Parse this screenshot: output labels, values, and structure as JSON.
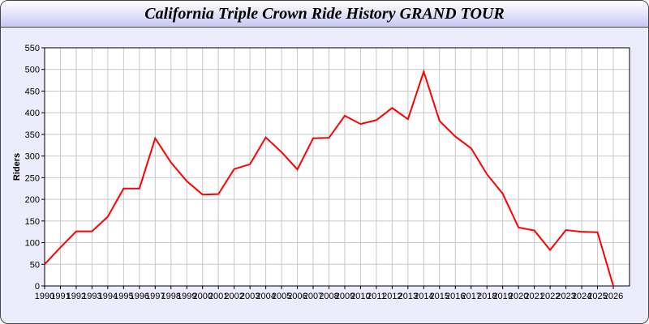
{
  "chart_data": {
    "type": "line",
    "title": "California Triple Crown Ride History GRAND TOUR",
    "xlabel": "",
    "ylabel": "Riders",
    "x": [
      1990,
      1991,
      1992,
      1993,
      1994,
      1995,
      1996,
      1997,
      1998,
      1999,
      2000,
      2001,
      2002,
      2003,
      2004,
      2005,
      2006,
      2007,
      2008,
      2009,
      2010,
      2011,
      2012,
      2013,
      2014,
      2015,
      2016,
      2017,
      2018,
      2019,
      2020,
      2021,
      2022,
      2023,
      2024,
      2025,
      2026
    ],
    "series": [
      {
        "values": [
          50,
          89,
          126,
          126,
          160,
          225,
          225,
          341,
          285,
          242,
          211,
          212,
          270,
          281,
          343,
          309,
          269,
          341,
          342,
          393,
          374,
          383,
          411,
          385,
          495,
          381,
          345,
          318,
          258,
          213,
          135,
          128,
          83,
          129,
          125,
          124,
          0
        ],
        "color": "#ff0000"
      }
    ],
    "yticks": [
      0,
      50,
      100,
      150,
      200,
      250,
      300,
      350,
      400,
      450,
      500,
      550
    ],
    "ylim": [
      0,
      550
    ],
    "xlim": [
      1990,
      2027
    ],
    "grid": true,
    "legend": "none"
  }
}
